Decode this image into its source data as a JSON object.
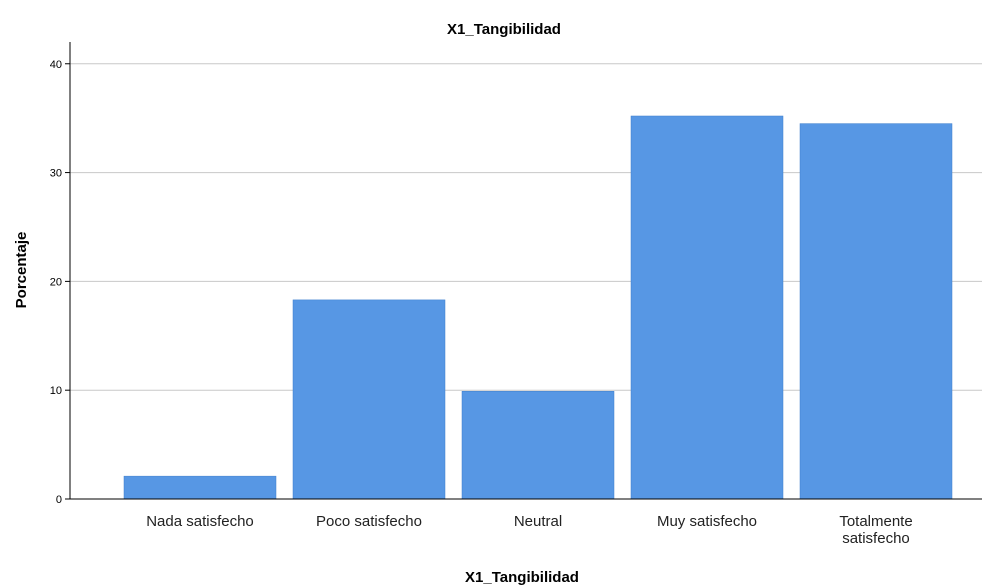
{
  "chart_data": {
    "type": "bar",
    "title": "X1_Tangibilidad",
    "xlabel": "X1_Tangibilidad",
    "ylabel": "Porcentaje",
    "categories": [
      [
        "Nada satisfecho"
      ],
      [
        "Poco satisfecho"
      ],
      [
        "Neutral"
      ],
      [
        "Muy satisfecho"
      ],
      [
        "Totalmente",
        "satisfecho"
      ]
    ],
    "values": [
      2.1,
      18.3,
      9.9,
      35.2,
      34.5
    ],
    "ylim": [
      0,
      42
    ],
    "yticks": [
      "0",
      "10",
      "20",
      "30",
      "40"
    ],
    "grid": true,
    "bar_color": "#5797E4",
    "grid_color": "#C8C8C8"
  }
}
